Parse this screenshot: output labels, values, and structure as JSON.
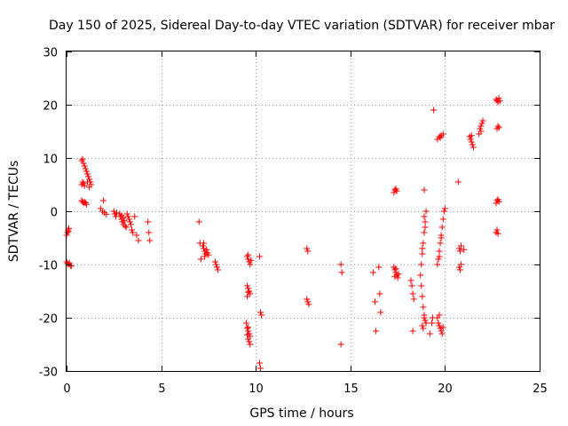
{
  "chart_data": {
    "type": "scatter",
    "title": "Day 150 of 2025, Sidereal Day-to-day VTEC variation (SDTVAR) for receiver mbar",
    "xlabel": "GPS time / hours",
    "ylabel": "SDTVAR / TECUs",
    "xlim": [
      0,
      25
    ],
    "ylim": [
      -30,
      30
    ],
    "xticks": [
      0,
      5,
      10,
      15,
      20,
      25
    ],
    "yticks": [
      -30,
      -20,
      -10,
      0,
      10,
      20,
      30
    ],
    "grid": true,
    "marker": "+",
    "color": "#ff0000",
    "series": [
      {
        "name": "mbar",
        "points": [
          [
            0.0,
            -4.5
          ],
          [
            0.05,
            -4.0
          ],
          [
            0.08,
            -3.5
          ],
          [
            0.1,
            -3.8
          ],
          [
            0.12,
            -3.2
          ],
          [
            0.0,
            -9.5
          ],
          [
            0.05,
            -9.8
          ],
          [
            0.1,
            -10.0
          ],
          [
            0.15,
            -9.7
          ],
          [
            0.2,
            -10.2
          ],
          [
            0.25,
            -10.3
          ],
          [
            0.8,
            2.0
          ],
          [
            0.85,
            1.8
          ],
          [
            0.9,
            1.5
          ],
          [
            0.95,
            1.7
          ],
          [
            1.0,
            1.6
          ],
          [
            1.05,
            1.3
          ],
          [
            0.8,
            5.0
          ],
          [
            0.85,
            5.5
          ],
          [
            0.9,
            5.2
          ],
          [
            0.95,
            4.8
          ],
          [
            0.8,
            9.5
          ],
          [
            0.85,
            9.8
          ],
          [
            0.9,
            9.0
          ],
          [
            0.95,
            8.5
          ],
          [
            1.0,
            8.0
          ],
          [
            1.05,
            7.5
          ],
          [
            1.1,
            7.0
          ],
          [
            1.15,
            6.5
          ],
          [
            1.2,
            6.0
          ],
          [
            1.25,
            5.5
          ],
          [
            1.3,
            5.0
          ],
          [
            1.2,
            4.5
          ],
          [
            1.1,
            5.5
          ],
          [
            1.8,
            0.5
          ],
          [
            1.9,
            0.0
          ],
          [
            2.0,
            -0.3
          ],
          [
            2.1,
            -0.6
          ],
          [
            1.95,
            2.0
          ],
          [
            2.5,
            0.0
          ],
          [
            2.55,
            -0.5
          ],
          [
            2.6,
            -1.0
          ],
          [
            2.65,
            -0.3
          ],
          [
            2.8,
            -0.5
          ],
          [
            2.85,
            -1.0
          ],
          [
            2.9,
            -1.5
          ],
          [
            2.95,
            -2.0
          ],
          [
            3.0,
            -2.5
          ],
          [
            3.05,
            -1.8
          ],
          [
            3.1,
            -2.8
          ],
          [
            3.15,
            -3.0
          ],
          [
            2.9,
            -0.8
          ],
          [
            3.0,
            -1.2
          ],
          [
            3.2,
            -0.5
          ],
          [
            3.25,
            -1.0
          ],
          [
            3.3,
            -1.5
          ],
          [
            3.35,
            -2.0
          ],
          [
            3.4,
            -2.5
          ],
          [
            3.45,
            -3.5
          ],
          [
            3.5,
            -4.0
          ],
          [
            3.6,
            -1.0
          ],
          [
            3.7,
            -4.5
          ],
          [
            3.8,
            -5.5
          ],
          [
            4.3,
            -2.0
          ],
          [
            4.35,
            -4.0
          ],
          [
            4.4,
            -5.5
          ],
          [
            7.0,
            -2.0
          ],
          [
            7.05,
            -6.0
          ],
          [
            7.1,
            -9.0
          ],
          [
            7.2,
            -6.5
          ],
          [
            7.25,
            -7.0
          ],
          [
            7.3,
            -7.5
          ],
          [
            7.35,
            -8.0
          ],
          [
            7.3,
            -8.5
          ],
          [
            7.25,
            -6.0
          ],
          [
            7.4,
            -7.2
          ],
          [
            7.45,
            -7.8
          ],
          [
            7.5,
            -8.2
          ],
          [
            7.9,
            -10.0
          ],
          [
            7.95,
            -10.5
          ],
          [
            8.0,
            -11.0
          ],
          [
            7.85,
            -9.5
          ],
          [
            9.55,
            -8.5
          ],
          [
            9.6,
            -9.0
          ],
          [
            9.65,
            -9.5
          ],
          [
            9.7,
            -10.0
          ],
          [
            9.75,
            -9.2
          ],
          [
            9.6,
            -8.2
          ],
          [
            9.55,
            -14.0
          ],
          [
            9.6,
            -14.5
          ],
          [
            9.65,
            -15.0
          ],
          [
            9.7,
            -15.5
          ],
          [
            9.55,
            -16.0
          ],
          [
            9.6,
            -15.2
          ],
          [
            9.5,
            -21.0
          ],
          [
            9.55,
            -22.0
          ],
          [
            9.6,
            -22.5
          ],
          [
            9.65,
            -23.0
          ],
          [
            9.7,
            -23.5
          ],
          [
            9.6,
            -24.0
          ],
          [
            9.65,
            -24.5
          ],
          [
            9.7,
            -25.0
          ],
          [
            9.55,
            -23.2
          ],
          [
            9.6,
            -21.8
          ],
          [
            10.2,
            -8.5
          ],
          [
            10.25,
            -19.0
          ],
          [
            10.3,
            -19.5
          ],
          [
            10.2,
            -28.5
          ],
          [
            10.25,
            -29.5
          ],
          [
            12.7,
            -7.0
          ],
          [
            12.75,
            -7.5
          ],
          [
            12.7,
            -16.5
          ],
          [
            12.75,
            -17.0
          ],
          [
            12.8,
            -17.5
          ],
          [
            14.5,
            -10.0
          ],
          [
            14.55,
            -11.5
          ],
          [
            14.5,
            -25.0
          ],
          [
            16.2,
            -11.5
          ],
          [
            16.3,
            -17.0
          ],
          [
            16.35,
            -22.5
          ],
          [
            16.5,
            -10.5
          ],
          [
            16.55,
            -15.5
          ],
          [
            16.6,
            -19.0
          ],
          [
            17.3,
            3.5
          ],
          [
            17.35,
            4.0
          ],
          [
            17.4,
            4.2
          ],
          [
            17.45,
            3.8
          ],
          [
            17.3,
            -10.5
          ],
          [
            17.35,
            -11.0
          ],
          [
            17.4,
            -11.5
          ],
          [
            17.45,
            -12.0
          ],
          [
            17.5,
            -12.5
          ],
          [
            17.55,
            -11.8
          ],
          [
            17.4,
            -10.8
          ],
          [
            17.35,
            -12.3
          ],
          [
            18.2,
            -13.0
          ],
          [
            18.25,
            -14.0
          ],
          [
            18.3,
            -15.5
          ],
          [
            18.35,
            -16.5
          ],
          [
            18.3,
            -22.5
          ],
          [
            18.7,
            -12.0
          ],
          [
            18.75,
            -14.0
          ],
          [
            18.8,
            -16.0
          ],
          [
            18.85,
            -18.0
          ],
          [
            18.9,
            -19.5
          ],
          [
            18.95,
            -20.5
          ],
          [
            19.0,
            -21.0
          ],
          [
            18.8,
            -21.5
          ],
          [
            18.85,
            -22.0
          ],
          [
            18.9,
            -20.0
          ],
          [
            18.75,
            -10.0
          ],
          [
            18.8,
            -8.0
          ],
          [
            18.85,
            -6.0
          ],
          [
            18.9,
            -4.0
          ],
          [
            18.95,
            -2.0
          ],
          [
            19.0,
            0.0
          ],
          [
            18.95,
            -3.0
          ],
          [
            18.9,
            -1.0
          ],
          [
            18.8,
            -7.0
          ],
          [
            18.9,
            4.0
          ],
          [
            19.2,
            -23.0
          ],
          [
            19.3,
            -21.0
          ],
          [
            19.35,
            -20.0
          ],
          [
            19.4,
            19.0
          ],
          [
            19.6,
            13.5
          ],
          [
            19.7,
            14.0
          ],
          [
            19.8,
            14.2
          ],
          [
            19.9,
            14.5
          ],
          [
            19.75,
            13.8
          ],
          [
            19.6,
            -10.0
          ],
          [
            19.65,
            -9.0
          ],
          [
            19.7,
            -7.5
          ],
          [
            19.75,
            -6.0
          ],
          [
            19.8,
            -4.5
          ],
          [
            19.85,
            -3.0
          ],
          [
            19.9,
            -1.5
          ],
          [
            19.95,
            0.0
          ],
          [
            20.0,
            0.5
          ],
          [
            19.7,
            -8.5
          ],
          [
            19.8,
            -5.0
          ],
          [
            19.6,
            -20.0
          ],
          [
            19.65,
            -21.0
          ],
          [
            19.7,
            -21.5
          ],
          [
            19.75,
            -22.0
          ],
          [
            19.8,
            -22.5
          ],
          [
            19.85,
            -23.0
          ],
          [
            19.9,
            -21.8
          ],
          [
            19.7,
            -19.5
          ],
          [
            20.7,
            5.5
          ],
          [
            20.75,
            -7.0
          ],
          [
            20.8,
            -7.5
          ],
          [
            20.85,
            -6.5
          ],
          [
            20.75,
            -10.5
          ],
          [
            20.8,
            -11.0
          ],
          [
            20.85,
            -10.0
          ],
          [
            21.0,
            -7.2
          ],
          [
            21.3,
            14.0
          ],
          [
            21.35,
            13.5
          ],
          [
            21.4,
            13.0
          ],
          [
            21.45,
            12.5
          ],
          [
            21.5,
            12.0
          ],
          [
            21.4,
            14.2
          ],
          [
            21.8,
            14.5
          ],
          [
            21.85,
            15.5
          ],
          [
            21.9,
            16.0
          ],
          [
            21.95,
            16.5
          ],
          [
            22.0,
            17.0
          ],
          [
            21.9,
            15.0
          ],
          [
            22.7,
            -4.0
          ],
          [
            22.75,
            -3.5
          ],
          [
            22.8,
            -4.2
          ],
          [
            22.7,
            1.5
          ],
          [
            22.75,
            2.0
          ],
          [
            22.8,
            2.2
          ],
          [
            22.85,
            1.8
          ],
          [
            22.75,
            15.5
          ],
          [
            22.8,
            16.0
          ],
          [
            22.85,
            15.7
          ],
          [
            22.7,
            21.0
          ],
          [
            22.75,
            20.8
          ],
          [
            22.8,
            20.5
          ],
          [
            22.85,
            21.2
          ],
          [
            22.9,
            20.7
          ]
        ]
      }
    ]
  }
}
